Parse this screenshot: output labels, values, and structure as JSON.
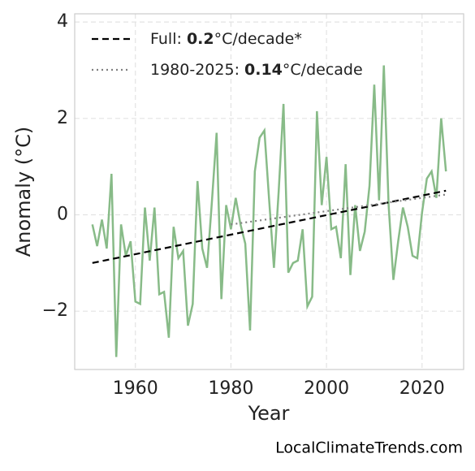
{
  "chart_data": {
    "type": "line",
    "x_label": "Year",
    "y_label": "Anomaly (°C)",
    "source": "LocalClimateTrends.com",
    "xlim": [
      1947.3,
      2028.7
    ],
    "xticks": [
      1960,
      1980,
      2000,
      2020
    ],
    "ylim": [
      -3.21,
      4.17
    ],
    "yticks": [
      {
        "value": -2,
        "label": "−2"
      },
      0,
      2,
      4
    ],
    "grid": true,
    "legend": "upper left",
    "series": [
      {
        "color": "#88bb88",
        "style": "solid",
        "x": [
          1951,
          1952,
          1953,
          1954,
          1955,
          1956,
          1957,
          1958,
          1959,
          1960,
          1961,
          1962,
          1963,
          1964,
          1965,
          1966,
          1967,
          1968,
          1969,
          1970,
          1971,
          1972,
          1973,
          1974,
          1975,
          1976,
          1977,
          1978,
          1979,
          1980,
          1981,
          1982,
          1983,
          1984,
          1985,
          1986,
          1987,
          1988,
          1989,
          1990,
          1991,
          1992,
          1993,
          1994,
          1995,
          1996,
          1997,
          1998,
          1999,
          2000,
          2001,
          2002,
          2003,
          2004,
          2005,
          2006,
          2007,
          2008,
          2009,
          2010,
          2011,
          2012,
          2013,
          2014,
          2015,
          2016,
          2017,
          2018,
          2019,
          2020,
          2021,
          2022,
          2023,
          2024,
          2025
        ],
        "values": [
          -0.2,
          -0.65,
          -0.1,
          -0.7,
          0.85,
          -2.95,
          -0.2,
          -0.85,
          -0.55,
          -1.8,
          -1.85,
          0.15,
          -0.95,
          0.15,
          -1.65,
          -1.6,
          -2.55,
          -0.25,
          -0.9,
          -0.75,
          -2.3,
          -1.85,
          0.7,
          -0.7,
          -1.1,
          0.25,
          1.7,
          -1.75,
          0.2,
          -0.3,
          0.35,
          -0.2,
          -0.6,
          -2.4,
          0.9,
          1.6,
          1.75,
          0.3,
          -1.1,
          0.5,
          2.3,
          -1.2,
          -1.0,
          -0.95,
          -0.3,
          -1.9,
          -1.7,
          2.15,
          0.2,
          1.2,
          -0.3,
          -0.25,
          -0.9,
          1.05,
          -1.25,
          0.2,
          -0.75,
          -0.35,
          0.6,
          2.7,
          0.3,
          3.1,
          0.2,
          -1.35,
          -0.55,
          0.15,
          -0.25,
          -0.85,
          -0.9,
          0.05,
          0.75,
          0.9,
          0.35,
          2.0,
          0.9
        ]
      },
      {
        "name": [
          "Full: ",
          0.2,
          "°C/decade*"
        ],
        "color": "#000000",
        "style": "dashed",
        "x": [
          1951,
          2025
        ],
        "values": [
          -1.0,
          0.5
        ]
      },
      {
        "name": [
          "1980-2025: ",
          0.14,
          "°C/decade"
        ],
        "color": "#808080",
        "style": "dotted",
        "x": [
          1980,
          2025
        ],
        "values": [
          -0.2,
          0.42
        ]
      }
    ]
  }
}
